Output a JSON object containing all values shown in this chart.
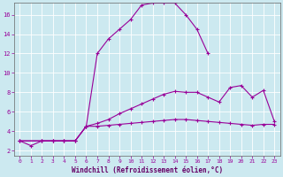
{
  "background_color": "#cce9f0",
  "grid_color": "#ffffff",
  "line_color": "#990099",
  "marker": "+",
  "xlabel": "Windchill (Refroidissement éolien,°C)",
  "xlabel_color": "#660066",
  "yticks": [
    2,
    4,
    6,
    8,
    10,
    12,
    14,
    16
  ],
  "xticks": [
    0,
    1,
    2,
    3,
    4,
    5,
    6,
    7,
    8,
    9,
    10,
    11,
    12,
    13,
    14,
    15,
    16,
    17,
    18,
    19,
    20,
    21,
    22,
    23
  ],
  "xlim": [
    -0.5,
    23.5
  ],
  "ylim": [
    1.5,
    17.2
  ],
  "curve1_x": [
    0,
    1,
    2,
    3,
    4,
    5,
    6,
    7,
    8,
    9,
    10,
    11,
    12,
    13,
    14,
    15,
    16,
    17
  ],
  "curve1_y": [
    3.0,
    2.5,
    3.0,
    3.0,
    3.0,
    3.0,
    4.5,
    12.0,
    13.5,
    14.5,
    15.5,
    17.0,
    17.2,
    17.2,
    17.2,
    16.0,
    14.5,
    12.0
  ],
  "curve2_x": [
    0,
    2,
    3,
    4,
    5,
    6,
    7,
    8,
    9,
    10,
    11,
    12,
    13,
    14,
    15,
    16,
    17,
    18,
    19,
    20,
    21,
    22,
    23
  ],
  "curve2_y": [
    3.0,
    3.0,
    3.0,
    3.0,
    3.0,
    4.5,
    4.8,
    5.2,
    5.8,
    6.3,
    6.8,
    7.3,
    7.8,
    8.1,
    8.0,
    8.0,
    7.5,
    7.0,
    8.5,
    8.7,
    7.5,
    8.2,
    5.0
  ],
  "curve3_x": [
    0,
    2,
    3,
    4,
    5,
    6,
    7,
    8,
    9,
    10,
    11,
    12,
    13,
    14,
    15,
    16,
    17,
    18,
    19,
    20,
    21,
    22,
    23
  ],
  "curve3_y": [
    3.0,
    3.0,
    3.0,
    3.0,
    3.0,
    4.5,
    4.5,
    4.6,
    4.7,
    4.8,
    4.9,
    5.0,
    5.1,
    5.2,
    5.2,
    5.1,
    5.0,
    4.9,
    4.8,
    4.7,
    4.6,
    4.7,
    4.7
  ]
}
